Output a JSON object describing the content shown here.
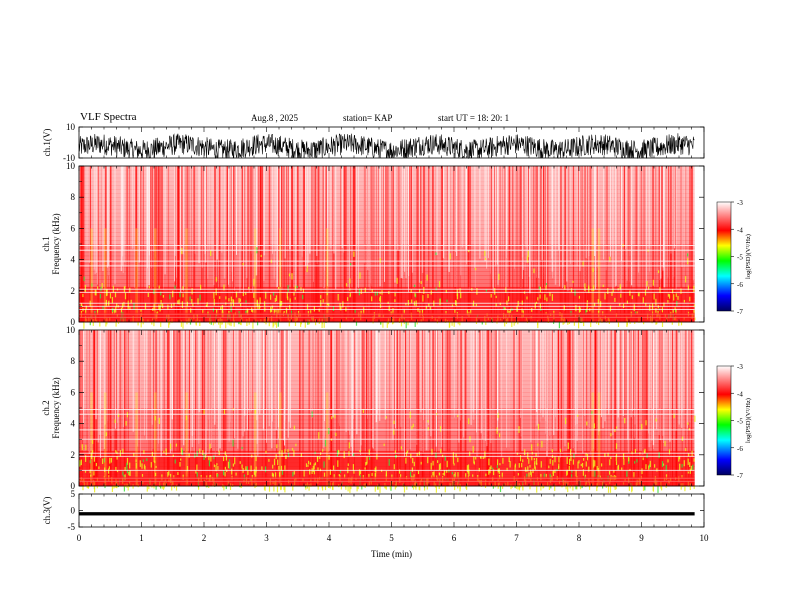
{
  "header": {
    "title": "VLF Spectra",
    "date": "Aug.8 , 2025",
    "station": "station= KAP",
    "start_ut": "start UT = 18: 20: 1"
  },
  "chart_data": [
    {
      "id": "ch1-waveform",
      "type": "line",
      "ylabel": "ch.1(V)",
      "ylim": [
        -10,
        10
      ],
      "yticks": [
        "10",
        "-10"
      ],
      "xlim": [
        0,
        10
      ],
      "data_end_min": 9.85,
      "description_values": {
        "amplitude_range": [
          -10,
          10
        ],
        "baseline": -3
      }
    },
    {
      "id": "ch1-spectrogram",
      "type": "heatmap",
      "ylabel": "ch.1\nFrequency (kHz)",
      "ylabel_lines": [
        "ch.1",
        "Frequency (kHz)"
      ],
      "ylim": [
        0,
        10
      ],
      "yticks": [
        "0",
        "2",
        "4",
        "6",
        "8",
        "10"
      ],
      "xlim": [
        0,
        10
      ],
      "data_end_min": 9.85,
      "colorbar": {
        "label": "log(PSD)(V²/Hz)",
        "range": [
          -7,
          -3
        ],
        "ticks": [
          "-3",
          "-4",
          "-5",
          "-6",
          "-7"
        ],
        "colors": [
          "#000080",
          "#0000ff",
          "#00ffff",
          "#00ff00",
          "#ffff00",
          "#ff0000",
          "#ffffff"
        ]
      },
      "bands_khz": [
        0.3,
        0.5,
        0.8,
        1.0,
        1.2,
        1.9,
        2.1,
        3.6,
        3.9,
        4.6,
        4.9
      ]
    },
    {
      "id": "ch2-spectrogram",
      "type": "heatmap",
      "ylabel": "ch.2\nFrequency (kHz)",
      "ylabel_lines": [
        "ch.2",
        "Frequency (kHz)"
      ],
      "ylim": [
        0,
        10
      ],
      "yticks": [
        "0",
        "2",
        "4",
        "6",
        "8",
        "10"
      ],
      "xlim": [
        0,
        10
      ],
      "data_end_min": 9.85,
      "colorbar": {
        "label": "log(PSD)(V²/Hz)",
        "range": [
          -7,
          -3
        ],
        "ticks": [
          "-3",
          "-4",
          "-5",
          "-6",
          "-7"
        ],
        "colors": [
          "#000080",
          "#0000ff",
          "#00ffff",
          "#00ff00",
          "#ffff00",
          "#ff0000",
          "#ffffff"
        ]
      },
      "bands_khz": [
        0.3,
        0.5,
        1.0,
        1.9,
        2.1,
        3.0,
        3.6,
        4.6,
        4.9
      ]
    },
    {
      "id": "ch3-waveform",
      "type": "line",
      "ylabel": "ch.3(V)",
      "ylim": [
        -5,
        5
      ],
      "yticks": [
        "5",
        "0",
        "-5"
      ],
      "xlim": [
        0,
        10
      ],
      "data_end_min": 9.85,
      "description_values": {
        "center": -1,
        "spread": 0.5
      }
    }
  ],
  "x_axis": {
    "label": "Time (min)",
    "ticks": [
      "0",
      "1",
      "2",
      "3",
      "4",
      "5",
      "6",
      "7",
      "8",
      "9",
      "10"
    ]
  }
}
